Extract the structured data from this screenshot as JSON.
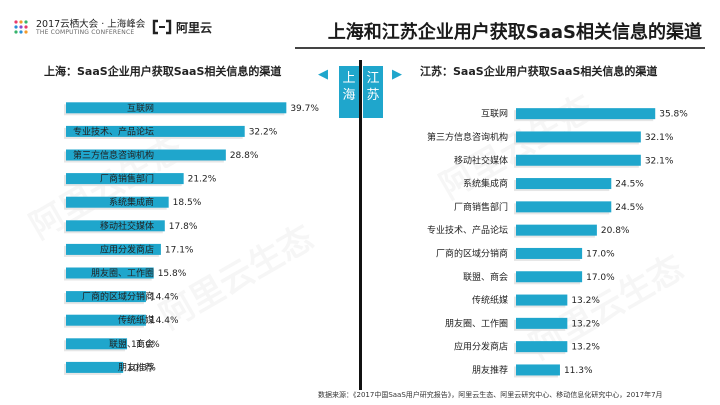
{
  "header": {
    "event_logo_line1": "2017云栖大会 · 上海峰会",
    "event_logo_line2": "THE COMPUTING CONFERENCE",
    "brand_logo_text": "阿里云",
    "title": "上海和江苏企业用户获取SaaS相关信息的渠道"
  },
  "center": {
    "left_region": "上海",
    "right_region": "江苏",
    "left_arrow": "◀",
    "right_arrow": "▶"
  },
  "watermark_text": "阿里云生态",
  "footer": {
    "source": "数据来源：《2017中国SaaS用户研究报告》，阿里云生态、阿里云研究中心、移动信息化研究中心，2017年7月"
  },
  "colors": {
    "bar": "#1fa6cc",
    "divider": "#111111"
  },
  "chart_data": [
    {
      "type": "bar",
      "orientation": "horizontal",
      "title": "上海：SaaS企业用户获取SaaS相关信息的渠道",
      "categories": [
        "互联网",
        "专业技术、产品论坛",
        "第三方信息咨询机构",
        "厂商销售部门",
        "系统集成商",
        "移动社交媒体",
        "应用分发商店",
        "朋友圈、工作圈",
        "厂商的区域分销商",
        "传统纸媒",
        "联盟、商会",
        "朋友推荐"
      ],
      "values": [
        39.7,
        32.2,
        28.8,
        21.2,
        18.5,
        17.8,
        17.1,
        15.8,
        14.4,
        14.4,
        11.0,
        10.3
      ],
      "value_labels": [
        "39.7%",
        "32.2%",
        "28.8%",
        "21.2%",
        "18.5%",
        "17.8%",
        "17.1%",
        "15.8%",
        "14.4%",
        "14.4%",
        "11.0%",
        "10.3%"
      ],
      "unit": "%",
      "xlim": [
        0,
        40
      ],
      "grid": false,
      "legend": "none"
    },
    {
      "type": "bar",
      "orientation": "horizontal",
      "title": "江苏：SaaS企业用户获取SaaS相关信息的渠道",
      "categories": [
        "互联网",
        "第三方信息咨询机构",
        "移动社交媒体",
        "系统集成商",
        "厂商销售部门",
        "专业技术、产品论坛",
        "厂商的区域分销商",
        "联盟、商会",
        "传统纸媒",
        "朋友圈、工作圈",
        "应用分发商店",
        "朋友推荐"
      ],
      "values": [
        35.8,
        32.1,
        32.1,
        24.5,
        24.5,
        20.8,
        17.0,
        17.0,
        13.2,
        13.2,
        13.2,
        11.3
      ],
      "value_labels": [
        "35.8%",
        "32.1%",
        "32.1%",
        "24.5%",
        "24.5%",
        "20.8%",
        "17.0%",
        "17.0%",
        "13.2%",
        "13.2%",
        "13.2%",
        "11.3%"
      ],
      "unit": "%",
      "xlim": [
        0,
        36
      ],
      "grid": false,
      "legend": "none"
    }
  ]
}
